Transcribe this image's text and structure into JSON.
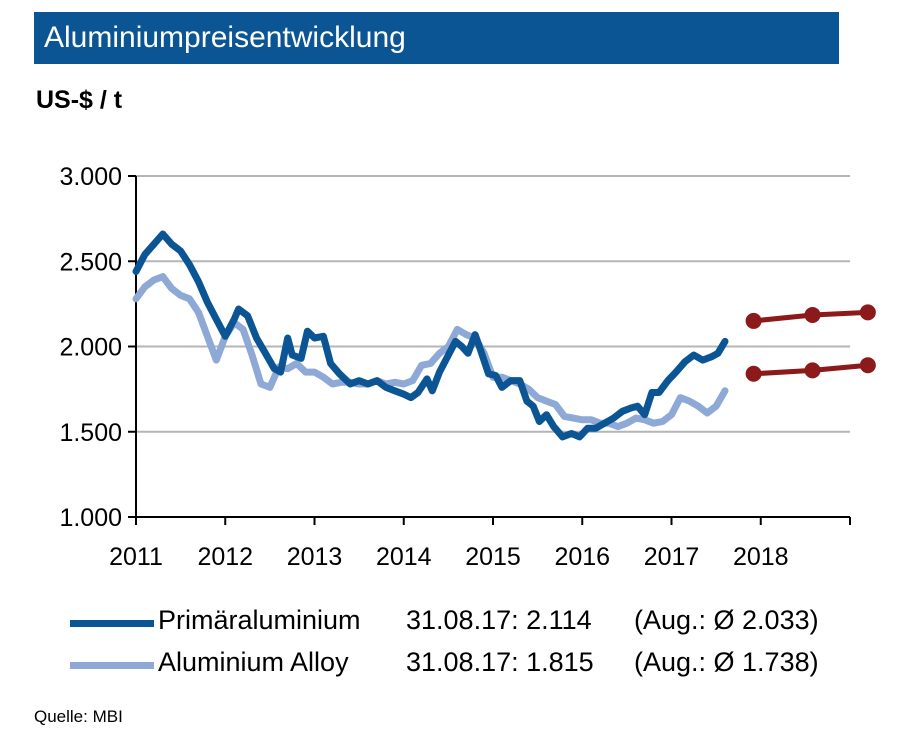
{
  "header": {
    "title": "Aluminiumpreisentwicklung",
    "unit": "US-$ / t"
  },
  "source": "Quelle:  MBI",
  "colors": {
    "title_bg": "#0b5595",
    "primary": "#0b5595",
    "alloy": "#8fa9d6",
    "forecast": "#8c1a1a",
    "grid": "#b5b5b5"
  },
  "legend": [
    {
      "name": "Primäraluminium",
      "value": "31.08.17: 2.114",
      "avg": "(Aug.: Ø 2.033)",
      "color": "#0b5595"
    },
    {
      "name": "Aluminium Alloy",
      "value": "31.08.17: 1.815",
      "avg": "(Aug.: Ø 1.738)",
      "color": "#8fa9d6"
    }
  ],
  "chart_data": {
    "type": "line",
    "title": "Aluminiumpreisentwicklung",
    "ylabel": "US-$ / t",
    "xlabel": "",
    "xlim": [
      2011,
      2019
    ],
    "ylim": [
      1000,
      3000
    ],
    "grid": true,
    "legend_position": "bottom",
    "x_ticks": [
      "2011",
      "2012",
      "2013",
      "2014",
      "2015",
      "2016",
      "2017",
      "2018"
    ],
    "y_ticks": [
      "1.000",
      "1.500",
      "2.000",
      "2.500",
      "3.000"
    ],
    "series": [
      {
        "name": "Primäraluminium",
        "color": "#0b5595",
        "x": [
          2011.0,
          2011.1,
          2011.2,
          2011.3,
          2011.4,
          2011.5,
          2011.6,
          2011.7,
          2011.8,
          2011.9,
          2012.0,
          2012.1,
          2012.15,
          2012.25,
          2012.35,
          2012.45,
          2012.55,
          2012.62,
          2012.7,
          2012.75,
          2012.85,
          2012.92,
          2013.0,
          2013.1,
          2013.18,
          2013.28,
          2013.4,
          2013.5,
          2013.6,
          2013.7,
          2013.8,
          2013.9,
          2014.0,
          2014.08,
          2014.16,
          2014.26,
          2014.32,
          2014.4,
          2014.5,
          2014.58,
          2014.65,
          2014.72,
          2014.8,
          2014.86,
          2014.95,
          2015.03,
          2015.1,
          2015.2,
          2015.3,
          2015.38,
          2015.45,
          2015.52,
          2015.6,
          2015.68,
          2015.78,
          2015.88,
          2015.97,
          2016.06,
          2016.15,
          2016.25,
          2016.35,
          2016.45,
          2016.55,
          2016.62,
          2016.7,
          2016.78,
          2016.86,
          2016.96,
          2017.05,
          2017.15,
          2017.25,
          2017.35,
          2017.45,
          2017.52,
          2017.6
        ],
        "values": [
          2440,
          2540,
          2600,
          2660,
          2600,
          2560,
          2480,
          2380,
          2260,
          2160,
          2060,
          2160,
          2220,
          2180,
          2050,
          1960,
          1870,
          1850,
          2050,
          1950,
          1930,
          2090,
          2050,
          2060,
          1900,
          1840,
          1780,
          1800,
          1780,
          1800,
          1760,
          1740,
          1720,
          1700,
          1730,
          1810,
          1740,
          1850,
          1950,
          2030,
          2000,
          1960,
          2070,
          1980,
          1840,
          1830,
          1760,
          1800,
          1800,
          1680,
          1650,
          1560,
          1600,
          1530,
          1470,
          1490,
          1470,
          1520,
          1520,
          1550,
          1580,
          1620,
          1640,
          1650,
          1600,
          1730,
          1730,
          1800,
          1850,
          1910,
          1950,
          1920,
          1940,
          1960,
          2030
        ]
      },
      {
        "name": "Aluminium Alloy",
        "color": "#8fa9d6",
        "x": [
          2011.0,
          2011.1,
          2011.2,
          2011.3,
          2011.4,
          2011.5,
          2011.6,
          2011.7,
          2011.8,
          2011.9,
          2012.0,
          2012.1,
          2012.2,
          2012.3,
          2012.4,
          2012.5,
          2012.6,
          2012.7,
          2012.8,
          2012.9,
          2013.0,
          2013.1,
          2013.2,
          2013.3,
          2013.4,
          2013.5,
          2013.6,
          2013.7,
          2013.8,
          2013.9,
          2014.0,
          2014.1,
          2014.2,
          2014.3,
          2014.4,
          2014.5,
          2014.6,
          2014.7,
          2014.8,
          2014.9,
          2015.0,
          2015.1,
          2015.2,
          2015.3,
          2015.4,
          2015.5,
          2015.6,
          2015.7,
          2015.8,
          2015.9,
          2016.0,
          2016.1,
          2016.2,
          2016.3,
          2016.4,
          2016.5,
          2016.6,
          2016.7,
          2016.8,
          2016.9,
          2017.0,
          2017.1,
          2017.2,
          2017.3,
          2017.4,
          2017.5,
          2017.6
        ],
        "values": [
          2280,
          2350,
          2390,
          2410,
          2340,
          2300,
          2280,
          2200,
          2060,
          1920,
          2060,
          2140,
          2100,
          1950,
          1780,
          1760,
          1880,
          1870,
          1900,
          1850,
          1850,
          1820,
          1780,
          1790,
          1790,
          1780,
          1780,
          1800,
          1780,
          1790,
          1780,
          1800,
          1890,
          1900,
          1960,
          2000,
          2100,
          2070,
          2050,
          1960,
          1820,
          1820,
          1800,
          1780,
          1750,
          1700,
          1680,
          1660,
          1590,
          1580,
          1570,
          1570,
          1550,
          1550,
          1530,
          1550,
          1580,
          1570,
          1550,
          1560,
          1600,
          1700,
          1680,
          1650,
          1610,
          1650,
          1740
        ]
      },
      {
        "name": "",
        "color": "#8c1a1a",
        "markers": true,
        "x": [
          2017.92,
          2018.58,
          2019.2
        ],
        "values": [
          2150,
          2185,
          2200
        ]
      },
      {
        "name": "",
        "color": "#8c1a1a",
        "markers": true,
        "x": [
          2017.92,
          2018.58,
          2019.2
        ],
        "values": [
          1840,
          1860,
          1890
        ]
      }
    ]
  }
}
